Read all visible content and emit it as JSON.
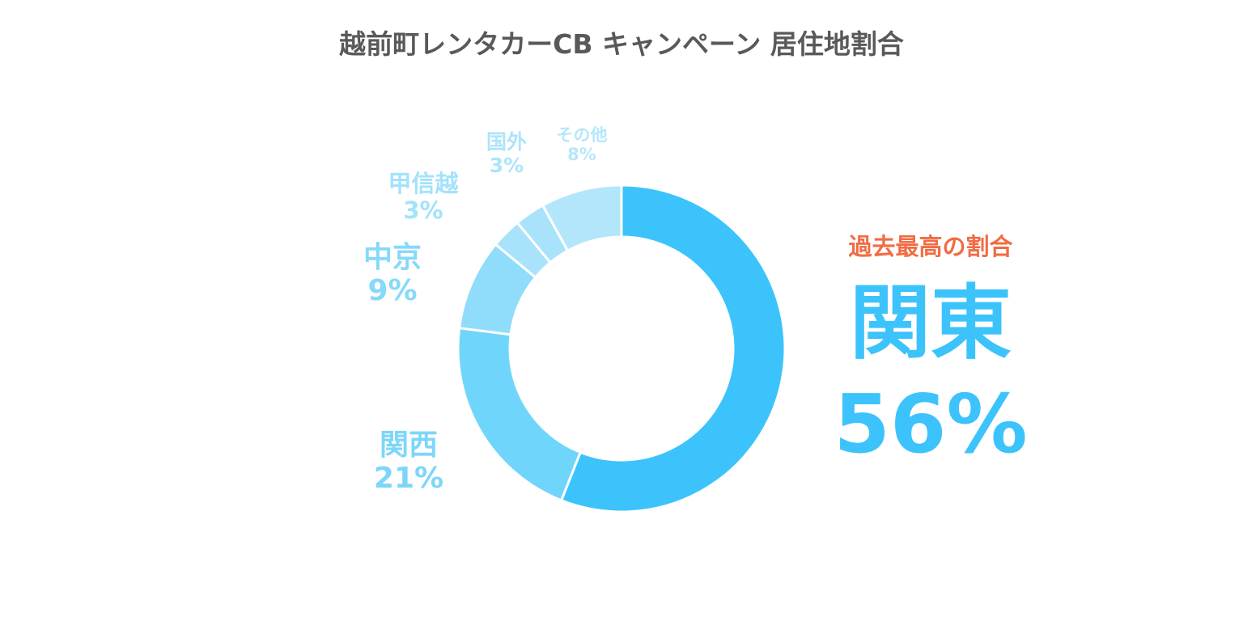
{
  "title": "越前町レンタカーCB キャンペーン 居住地割合",
  "chart_data": {
    "type": "pie",
    "variant": "donut",
    "title": "越前町レンタカーCB キャンペーン 居住地割合",
    "series": [
      {
        "name": "関東",
        "value": 56,
        "label": "56%",
        "color": "#3cc3fb"
      },
      {
        "name": "関西",
        "value": 21,
        "label": "21%",
        "color": "#6fd5fb"
      },
      {
        "name": "中京",
        "value": 9,
        "label": "9%",
        "color": "#8fdcfb"
      },
      {
        "name": "甲信越",
        "value": 3,
        "label": "3%",
        "color": "#a9e3fb"
      },
      {
        "name": "国外",
        "value": 3,
        "label": "3%",
        "color": "#a9e3fb"
      },
      {
        "name": "その他",
        "value": 8,
        "label": "8%",
        "color": "#b3e6fb"
      }
    ],
    "legend": "none"
  },
  "callout": {
    "heading": "過去最高の割合",
    "region": "関東",
    "percent": "56%",
    "heading_color": "#f26b43",
    "color": "#3cc3fb"
  }
}
